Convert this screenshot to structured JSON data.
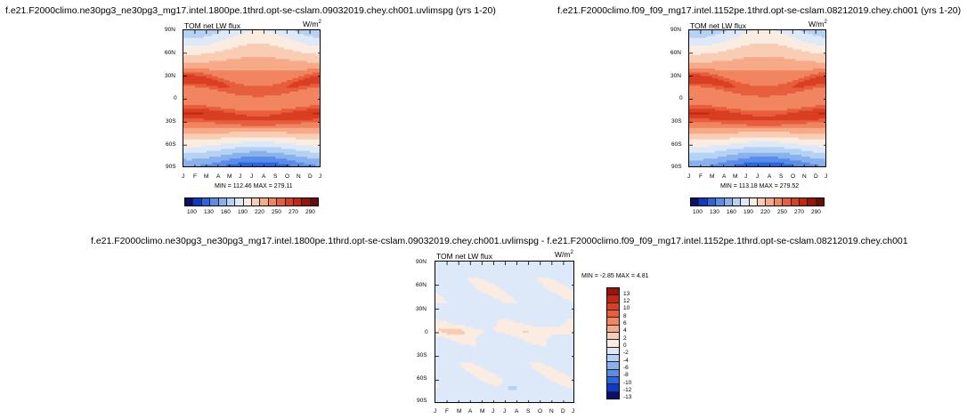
{
  "titles": {
    "top_left": "f.e21.F2000climo.ne30pg3_ne30pg3_mg17.intel.1800pe.1thrd.opt-se-cslam.09032019.chey.ch001.uvlimspg (yrs 1-20)",
    "top_right": "f.e21.F2000climo.f09_f09_mg17.intel.1152pe.1thrd.opt-se-cslam.08212019.chey.ch001 (yrs 1-20)",
    "bottom": "f.e21.F2000climo.ne30pg3_ne30pg3_mg17.intel.1800pe.1thrd.opt-se-cslam.09032019.chey.ch001.uvlimspg - f.e21.F2000climo.f09_f09_mg17.intel.1152pe.1thrd.opt-se-cslam.08212019.chey.ch001"
  },
  "colors": {
    "blues": [
      "#08106a",
      "#0d3bc4",
      "#2d65e0",
      "#5a8de8",
      "#88b1ee",
      "#b5d2f4",
      "#dde9f8"
    ],
    "neutral": "#fbece2",
    "reds": [
      "#f9cdb3",
      "#f6aa88",
      "#f08560",
      "#e85e3c",
      "#d93f22",
      "#c02812",
      "#9a140a",
      "#6f0a05"
    ]
  },
  "chart_data": [
    {
      "type": "heatmap",
      "name": "panel-left",
      "variable": "TOM net LW flux",
      "units": "W/m",
      "units_sup": "2",
      "x_ticks": [
        "J",
        "F",
        "M",
        "A",
        "M",
        "J",
        "J",
        "A",
        "S",
        "O",
        "N",
        "D",
        "J"
      ],
      "y_ticks": [
        "90N",
        "60N",
        "30N",
        "0",
        "30S",
        "60S",
        "90S"
      ],
      "ylim": [
        -90,
        90
      ],
      "stats": "MIN = 112.46  MAX = 279.11",
      "colorbar_labels": [
        "100",
        "130",
        "160",
        "190",
        "220",
        "250",
        "270",
        "290"
      ],
      "colorbar_colors": [
        "#08106a",
        "#0d3bc4",
        "#2d65e0",
        "#5a8de8",
        "#88b1ee",
        "#b5d2f4",
        "#dde9f8",
        "#fbece2",
        "#f9cdb3",
        "#f6aa88",
        "#f08560",
        "#e85e3c",
        "#d93f22",
        "#c02812",
        "#9a140a",
        "#6f0a05"
      ],
      "levels": [
        100,
        115,
        130,
        145,
        160,
        175,
        190,
        205,
        220,
        235,
        250,
        260,
        270,
        280,
        290
      ],
      "field": {
        "tropics": 248,
        "band_n_lat": 18,
        "band_s_lat": -22,
        "band_amp": 30,
        "band_shift": 8,
        "pole_n": 175,
        "pole_s": 125,
        "pole_seas": 15
      }
    },
    {
      "type": "heatmap",
      "name": "panel-right",
      "variable": "TOM net LW flux",
      "units": "W/m",
      "units_sup": "2",
      "x_ticks": [
        "J",
        "F",
        "M",
        "A",
        "M",
        "J",
        "J",
        "A",
        "S",
        "O",
        "N",
        "D",
        "J"
      ],
      "y_ticks": [
        "90N",
        "60N",
        "30N",
        "0",
        "30S",
        "60S",
        "90S"
      ],
      "ylim": [
        -90,
        90
      ],
      "stats": "MIN = 113.18  MAX = 279.52",
      "colorbar_labels": [
        "100",
        "130",
        "160",
        "190",
        "220",
        "250",
        "270",
        "290"
      ],
      "colorbar_colors": [
        "#08106a",
        "#0d3bc4",
        "#2d65e0",
        "#5a8de8",
        "#88b1ee",
        "#b5d2f4",
        "#dde9f8",
        "#fbece2",
        "#f9cdb3",
        "#f6aa88",
        "#f08560",
        "#e85e3c",
        "#d93f22",
        "#c02812",
        "#9a140a",
        "#6f0a05"
      ],
      "levels": [
        100,
        115,
        130,
        145,
        160,
        175,
        190,
        205,
        220,
        235,
        250,
        260,
        270,
        280,
        290
      ],
      "field": {
        "tropics": 248,
        "band_n_lat": 18,
        "band_s_lat": -22,
        "band_amp": 30,
        "band_shift": 8,
        "pole_n": 176,
        "pole_s": 126,
        "pole_seas": 15
      }
    },
    {
      "type": "heatmap",
      "name": "panel-diff",
      "variable": "TOM net LW flux",
      "units": "W/m",
      "units_sup": "2",
      "x_ticks": [
        "J",
        "F",
        "M",
        "A",
        "M",
        "J",
        "J",
        "A",
        "S",
        "O",
        "N",
        "D",
        "J"
      ],
      "y_ticks": [
        "90N",
        "60N",
        "30N",
        "0",
        "30S",
        "60S",
        "90S"
      ],
      "ylim": [
        -90,
        90
      ],
      "stats": "MIN =  -2.85  MAX =   4.81",
      "colorbar_labels": [
        "13",
        "12",
        "10",
        "8",
        "6",
        "4",
        "2",
        "0",
        "-2",
        "-4",
        "-6",
        "-8",
        "-10",
        "-12",
        "-13"
      ],
      "colorbar_colors": [
        "#9a140a",
        "#c02812",
        "#d93f22",
        "#e85e3c",
        "#f08560",
        "#f6aa88",
        "#f9cdb3",
        "#fbece2",
        "#dde9f8",
        "#b5d2f4",
        "#88b1ee",
        "#5a8de8",
        "#2d65e0",
        "#0d3bc4",
        "#08106a"
      ],
      "levels": [
        -13,
        -12,
        -10,
        -8,
        -6,
        -4,
        -2,
        0,
        2,
        4,
        6,
        8,
        10,
        12,
        13
      ]
    }
  ]
}
